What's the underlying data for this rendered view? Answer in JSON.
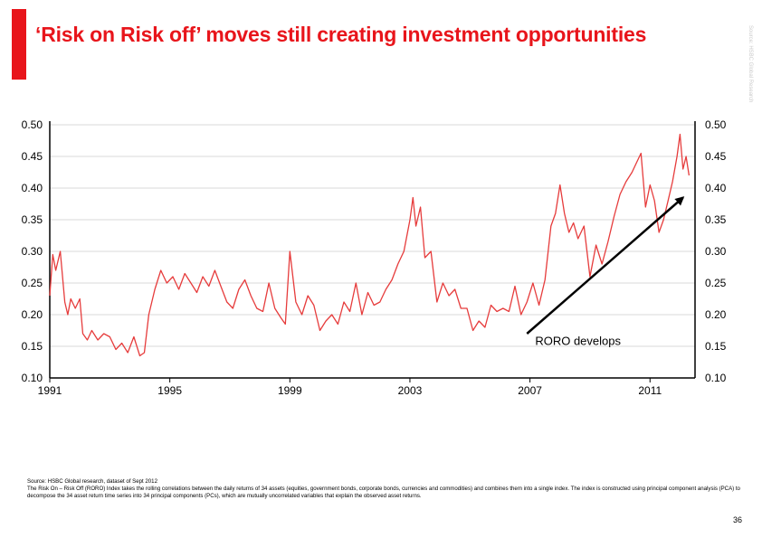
{
  "slide": {
    "title": "‘Risk on Risk off’ moves still creating investment opportunities",
    "side_note": "Source: HSBC Global Research",
    "source_line_1": "Source: HSBC Global research, dataset of Sept 2012",
    "source_line_2": "The Risk On – Risk Off (RORO) Index takes the rolling correlations between the daily returns of 34 assets (equities, government bonds, corporate bonds, currencies and commodities) and combines them into a single index. The index is constructed using principal component analysis (PCA) to decompose the 34 asset return time series into 34 principal components (PCs), which are mutually uncorrelated variables that explain the observed asset returns.",
    "page_number": "36"
  },
  "colors": {
    "accent": "#e8151b",
    "series": "#e63c3c",
    "arrow": "#000000"
  },
  "chart_data": {
    "type": "line",
    "title": "",
    "xlabel": "",
    "ylabel": "",
    "xlim": [
      1991.0,
      2012.5
    ],
    "ylim": [
      0.1,
      0.5
    ],
    "x_ticks": [
      1991,
      1995,
      1999,
      2003,
      2007,
      2011
    ],
    "x_tick_labels": [
      "1991",
      "1995",
      "1999",
      "2003",
      "2007",
      "2011"
    ],
    "y_ticks": [
      0.1,
      0.15,
      0.2,
      0.25,
      0.3,
      0.35,
      0.4,
      0.45,
      0.5
    ],
    "y_tick_labels_left": [
      "0.10",
      "0.15",
      "0.20",
      "0.25",
      "0.30",
      "0.35",
      "0.40",
      "0.45",
      "0.50"
    ],
    "y_tick_labels_right": [
      "0.10",
      "0.15",
      "0.20",
      "0.25",
      "0.30",
      "0.35",
      "0.40",
      "0.45",
      "0.50"
    ],
    "grid": "horizontal",
    "series": [
      {
        "x": [
          1991.0,
          1991.1,
          1991.2,
          1991.35,
          1991.5,
          1991.6,
          1991.7,
          1991.85,
          1992.0,
          1992.1,
          1992.25,
          1992.4,
          1992.6,
          1992.8,
          1993.0,
          1993.2,
          1993.4,
          1993.6,
          1993.8,
          1994.0,
          1994.15,
          1994.3,
          1994.5,
          1994.7,
          1994.9,
          1995.1,
          1995.3,
          1995.5,
          1995.7,
          1995.9,
          1996.1,
          1996.3,
          1996.5,
          1996.7,
          1996.9,
          1997.1,
          1997.3,
          1997.5,
          1997.7,
          1997.9,
          1998.1,
          1998.3,
          1998.5,
          1998.7,
          1998.85,
          1999.0,
          1999.2,
          1999.4,
          1999.6,
          1999.8,
          2000.0,
          2000.2,
          2000.4,
          2000.6,
          2000.8,
          2001.0,
          2001.2,
          2001.4,
          2001.6,
          2001.8,
          2002.0,
          2002.2,
          2002.4,
          2002.6,
          2002.8,
          2003.0,
          2003.1,
          2003.2,
          2003.35,
          2003.5,
          2003.7,
          2003.9,
          2004.1,
          2004.3,
          2004.5,
          2004.7,
          2004.9,
          2005.1,
          2005.3,
          2005.5,
          2005.7,
          2005.9,
          2006.1,
          2006.3,
          2006.5,
          2006.7,
          2006.9,
          2007.1,
          2007.3,
          2007.5,
          2007.7,
          2007.85,
          2008.0,
          2008.15,
          2008.3,
          2008.45,
          2008.6,
          2008.8,
          2009.0,
          2009.2,
          2009.4,
          2009.6,
          2009.8,
          2010.0,
          2010.2,
          2010.4,
          2010.55,
          2010.7,
          2010.85,
          2011.0,
          2011.15,
          2011.3,
          2011.45,
          2011.6,
          2011.75,
          2011.9,
          2012.0,
          2012.1,
          2012.2,
          2012.3
        ],
        "values": [
          0.23,
          0.295,
          0.27,
          0.3,
          0.22,
          0.2,
          0.225,
          0.21,
          0.225,
          0.17,
          0.16,
          0.175,
          0.16,
          0.17,
          0.165,
          0.145,
          0.155,
          0.14,
          0.165,
          0.135,
          0.14,
          0.2,
          0.24,
          0.27,
          0.25,
          0.26,
          0.24,
          0.265,
          0.25,
          0.235,
          0.26,
          0.245,
          0.27,
          0.245,
          0.22,
          0.21,
          0.24,
          0.255,
          0.23,
          0.21,
          0.205,
          0.25,
          0.21,
          0.195,
          0.185,
          0.3,
          0.22,
          0.2,
          0.23,
          0.215,
          0.175,
          0.19,
          0.2,
          0.185,
          0.22,
          0.205,
          0.25,
          0.2,
          0.235,
          0.215,
          0.22,
          0.24,
          0.255,
          0.28,
          0.3,
          0.35,
          0.385,
          0.34,
          0.37,
          0.29,
          0.3,
          0.22,
          0.25,
          0.23,
          0.24,
          0.21,
          0.21,
          0.175,
          0.19,
          0.18,
          0.215,
          0.205,
          0.21,
          0.205,
          0.245,
          0.2,
          0.22,
          0.25,
          0.215,
          0.255,
          0.34,
          0.36,
          0.405,
          0.36,
          0.33,
          0.345,
          0.32,
          0.34,
          0.26,
          0.31,
          0.28,
          0.315,
          0.355,
          0.39,
          0.41,
          0.425,
          0.44,
          0.455,
          0.37,
          0.405,
          0.38,
          0.33,
          0.35,
          0.38,
          0.41,
          0.45,
          0.485,
          0.43,
          0.45,
          0.42
        ]
      }
    ],
    "annotations": [
      {
        "text": "RORO develops",
        "x": 2008.6,
        "y": 0.152
      }
    ],
    "arrow": {
      "from": [
        2006.9,
        0.17
      ],
      "to": [
        2012.1,
        0.385
      ]
    }
  }
}
